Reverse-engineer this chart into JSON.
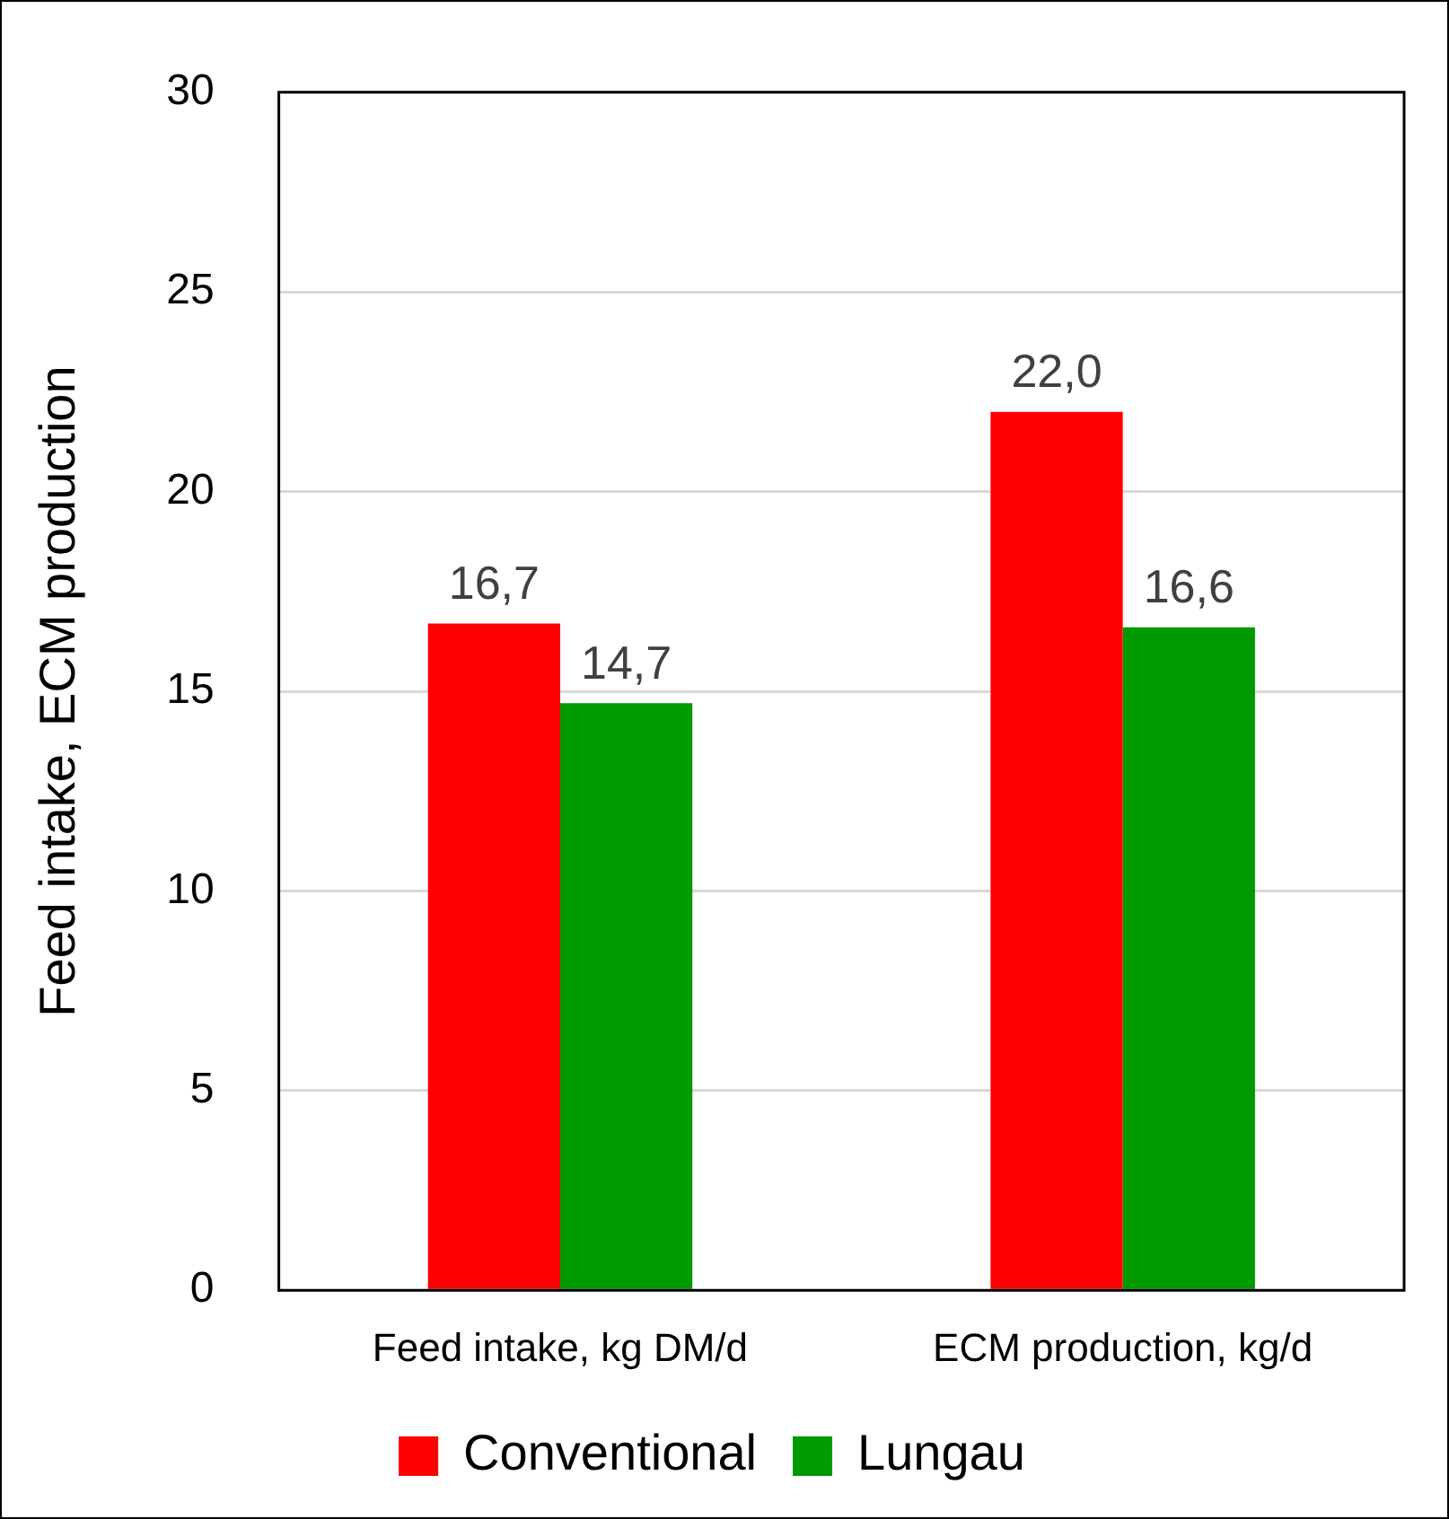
{
  "chart_data": {
    "type": "bar",
    "ylabel": "Feed intake, ECM production",
    "categories": [
      "Feed intake, kg DM/d",
      "ECM production, kg/d"
    ],
    "series": [
      {
        "name": "Conventional",
        "color": "#ff0000",
        "values": [
          16.7,
          22.0
        ],
        "value_labels": [
          "16,7",
          "22,0"
        ]
      },
      {
        "name": "Lungau",
        "color": "#009900",
        "values": [
          14.7,
          16.6
        ],
        "value_labels": [
          "14,7",
          "16,6"
        ]
      }
    ],
    "ylim": [
      0,
      30
    ],
    "yticks": [
      0,
      5,
      10,
      15,
      20,
      25,
      30
    ],
    "grid": "y",
    "legend": "bottom"
  }
}
